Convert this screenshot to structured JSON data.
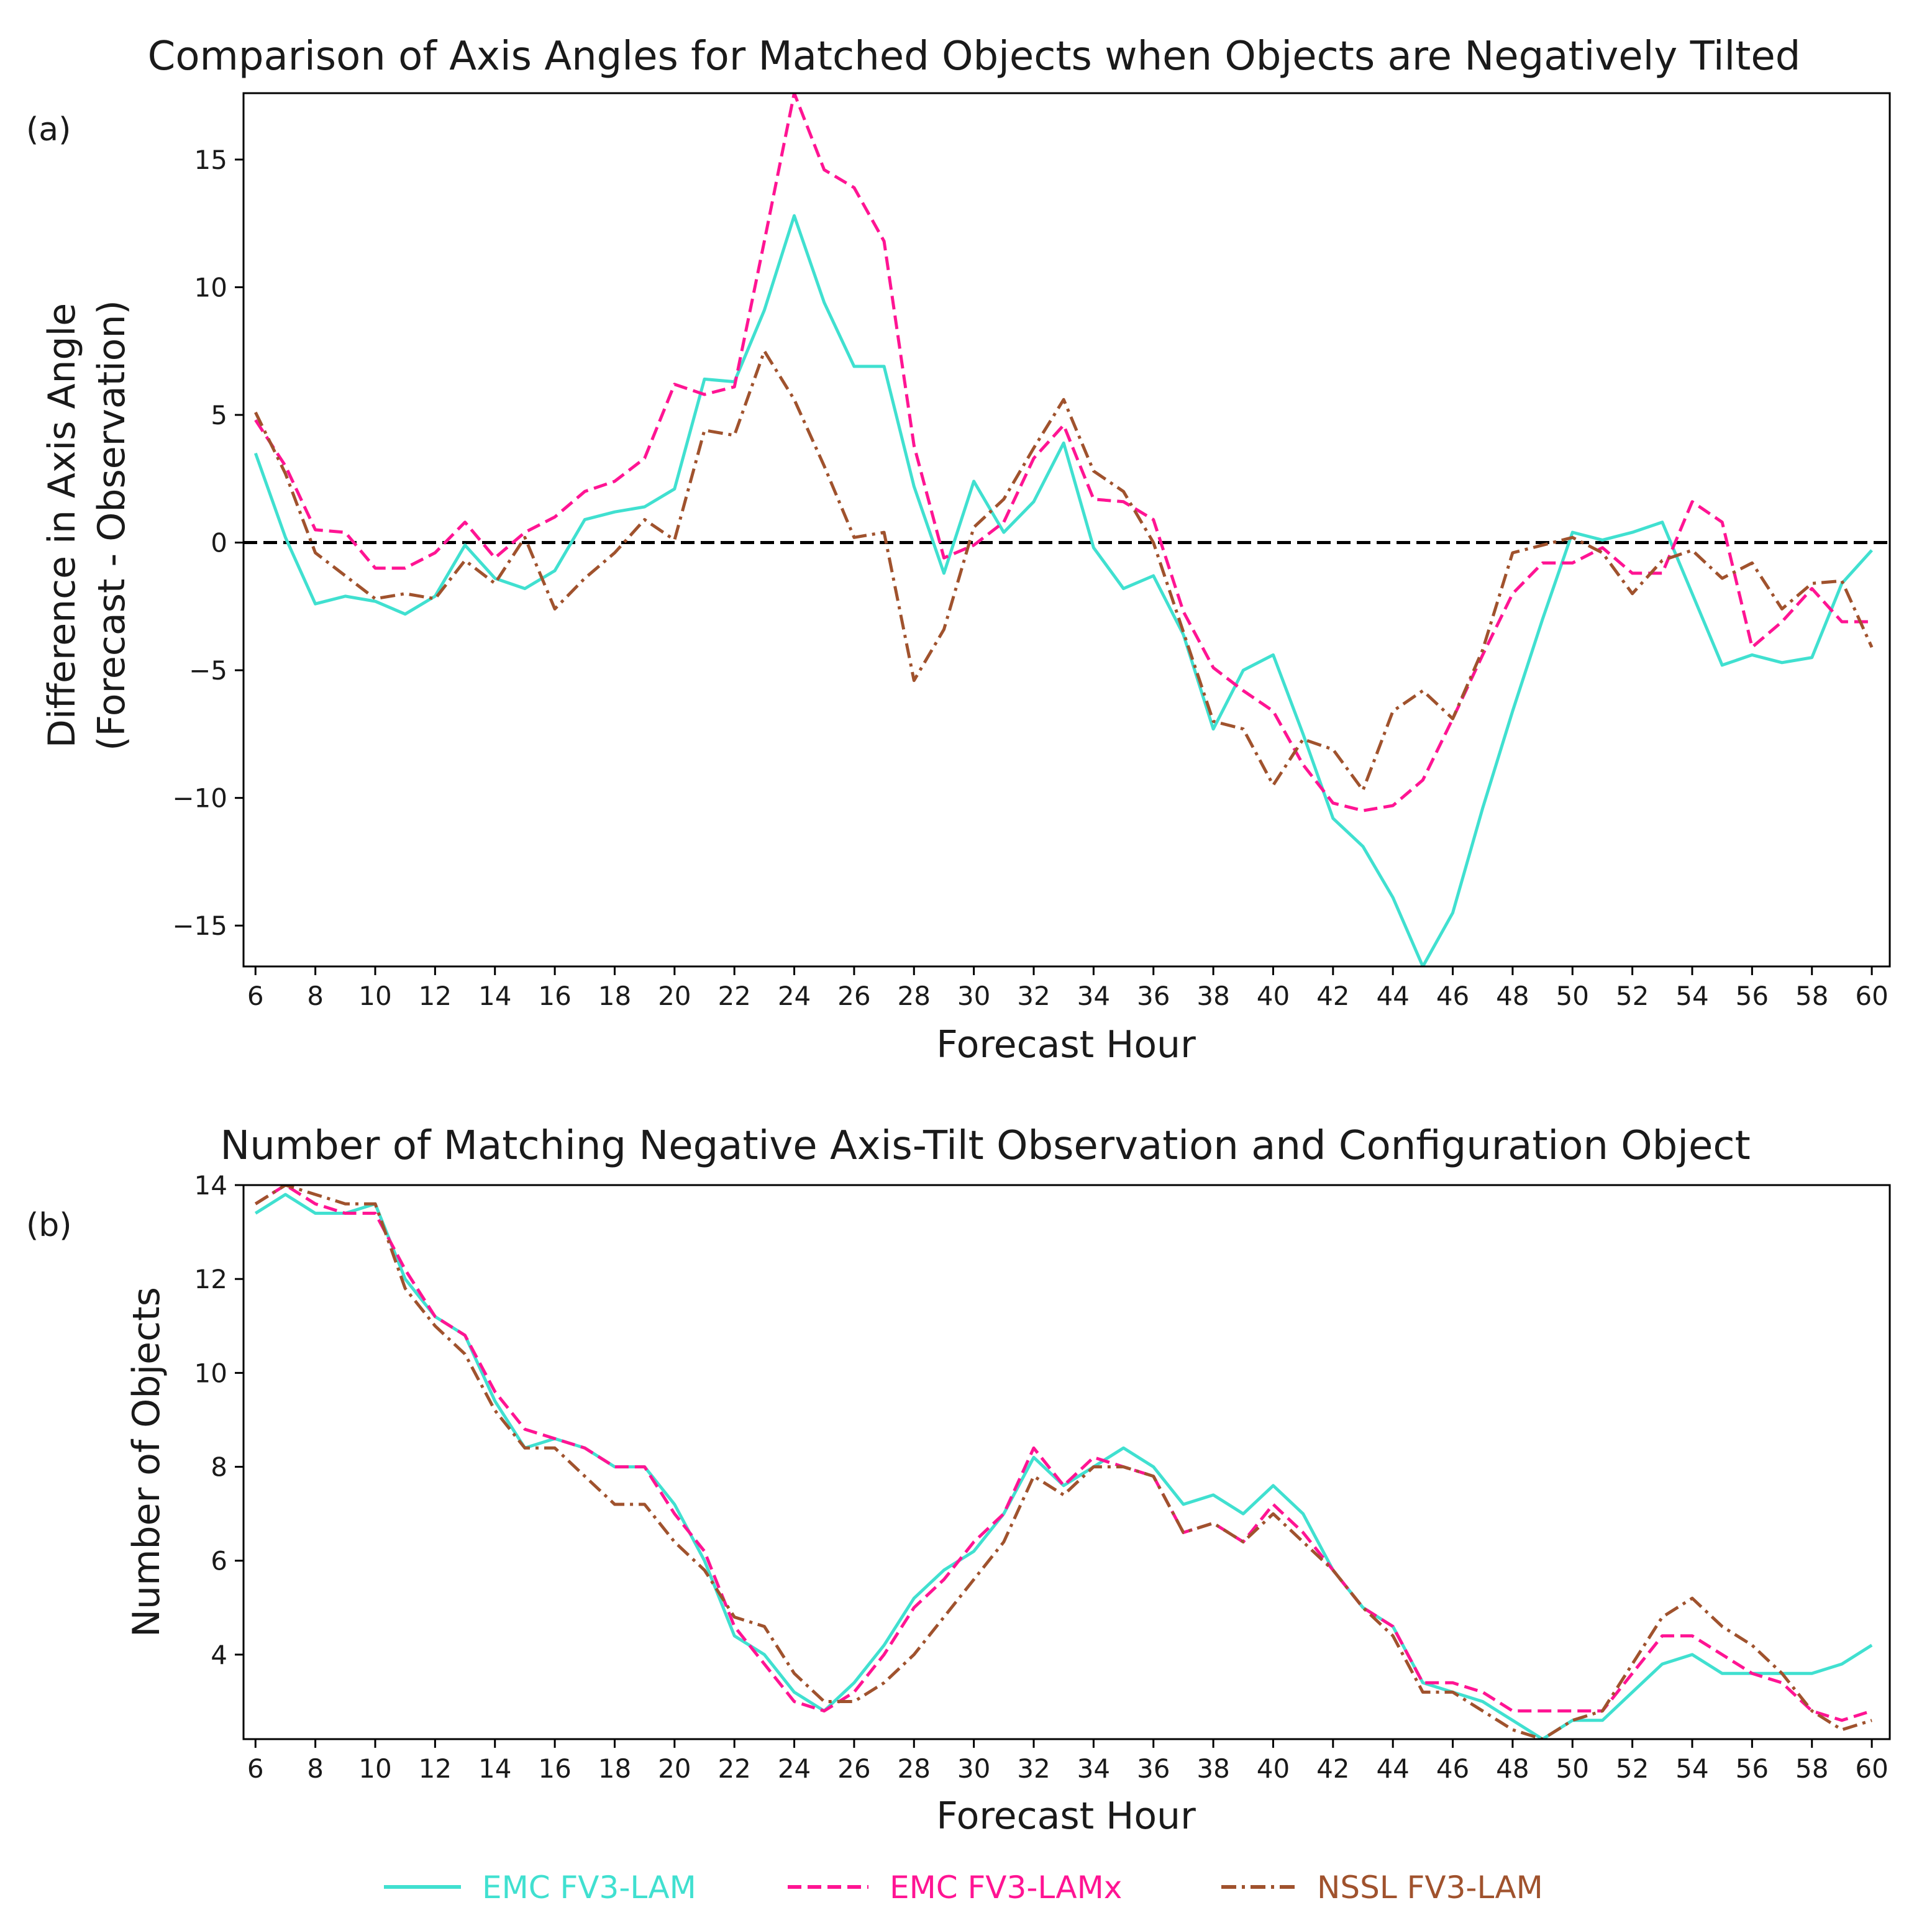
{
  "chart_data": [
    {
      "type": "line",
      "panel_label": "(a)",
      "title": "Comparison of Axis Angles for Matched Objects when Objects are Negatively Tilted",
      "xlabel": "Forecast Hour",
      "ylabel_line1": "Difference in Axis Angle",
      "ylabel_line2": "(Forecast - Observation)",
      "xlim": [
        5.6,
        60.6
      ],
      "ylim": [
        -16.6,
        17.6
      ],
      "xticks": [
        6,
        8,
        10,
        12,
        14,
        16,
        18,
        20,
        22,
        24,
        26,
        28,
        30,
        32,
        34,
        36,
        38,
        40,
        42,
        44,
        46,
        48,
        50,
        52,
        54,
        56,
        58,
        60
      ],
      "yticks": [
        -15,
        -10,
        -5,
        0,
        5,
        10,
        15
      ],
      "ytick_labels": [
        "−15",
        "−10",
        "−5",
        "0",
        "5",
        "10",
        "15"
      ],
      "reference_line": 0,
      "x": [
        6,
        7,
        8,
        9,
        10,
        11,
        12,
        13,
        14,
        15,
        16,
        17,
        18,
        19,
        20,
        21,
        22,
        23,
        24,
        25,
        26,
        27,
        28,
        29,
        30,
        31,
        32,
        33,
        34,
        35,
        36,
        37,
        38,
        39,
        40,
        41,
        42,
        43,
        44,
        45,
        46,
        47,
        48,
        49,
        50,
        51,
        52,
        53,
        54,
        55,
        56,
        57,
        58,
        59,
        60
      ],
      "series": [
        {
          "name": "EMC FV3-LAM",
          "color": "#40e0d0",
          "dash": "solid",
          "values": [
            3.5,
            0.2,
            -2.4,
            -2.1,
            -2.3,
            -2.8,
            -2.1,
            -0.1,
            -1.4,
            -1.8,
            -1.1,
            0.9,
            1.2,
            1.4,
            2.1,
            6.4,
            6.3,
            9.1,
            12.8,
            9.4,
            6.9,
            6.9,
            2.2,
            -1.2,
            2.4,
            0.4,
            1.6,
            3.9,
            -0.2,
            -1.8,
            -1.3,
            -3.6,
            -7.3,
            -5.0,
            -4.4,
            -7.5,
            -10.8,
            -11.9,
            -13.9,
            -16.6,
            -14.5,
            -10.4,
            -6.6,
            -3.0,
            0.4,
            0.1,
            0.4,
            0.8,
            -2.0,
            -4.8,
            -4.4,
            -4.7,
            -4.5,
            -1.6,
            -0.3
          ]
        },
        {
          "name": "EMC FV3-LAMx",
          "color": "#ff1493",
          "dash": "dashed",
          "values": [
            4.8,
            3.0,
            0.5,
            0.4,
            -1.0,
            -1.0,
            -0.4,
            0.8,
            -0.6,
            0.4,
            1.0,
            2.0,
            2.4,
            3.3,
            6.2,
            5.8,
            6.1,
            11.8,
            17.6,
            14.6,
            13.9,
            11.8,
            3.8,
            -0.6,
            -0.1,
            0.8,
            3.3,
            4.6,
            1.7,
            1.6,
            0.9,
            -2.7,
            -4.9,
            -5.8,
            -6.6,
            -8.7,
            -10.2,
            -10.5,
            -10.3,
            -9.3,
            -6.9,
            -4.4,
            -2.0,
            -0.8,
            -0.8,
            -0.2,
            -1.2,
            -1.2,
            1.6,
            0.8,
            -4.1,
            -3.1,
            -1.8,
            -3.1,
            -3.1
          ]
        },
        {
          "name": "NSSL FV3-LAM",
          "color": "#a0522d",
          "dash": "dashdot",
          "values": [
            5.1,
            2.7,
            -0.4,
            -1.3,
            -2.2,
            -2.0,
            -2.2,
            -0.7,
            -1.6,
            0.2,
            -2.6,
            -1.4,
            -0.4,
            0.9,
            0.1,
            4.4,
            4.2,
            7.5,
            5.6,
            3.0,
            0.2,
            0.4,
            -5.4,
            -3.4,
            0.6,
            1.7,
            3.7,
            5.6,
            2.8,
            2.0,
            0.0,
            -3.5,
            -7.0,
            -7.3,
            -9.5,
            -7.7,
            -8.1,
            -9.7,
            -6.6,
            -5.8,
            -6.9,
            -4.2,
            -0.4,
            -0.1,
            0.2,
            -0.4,
            -2.0,
            -0.7,
            -0.3,
            -1.4,
            -0.8,
            -2.6,
            -1.6,
            -1.5,
            -4.1
          ]
        }
      ]
    },
    {
      "type": "line",
      "panel_label": "(b)",
      "title": "Number of Matching Negative Axis-Tilt Observation and Configuration Object",
      "xlabel": "Forecast Hour",
      "ylabel": "Number of Objects",
      "xlim": [
        5.6,
        60.6
      ],
      "ylim": [
        2.2,
        14.0
      ],
      "xticks": [
        6,
        8,
        10,
        12,
        14,
        16,
        18,
        20,
        22,
        24,
        26,
        28,
        30,
        32,
        34,
        36,
        38,
        40,
        42,
        44,
        46,
        48,
        50,
        52,
        54,
        56,
        58,
        60
      ],
      "yticks": [
        4,
        6,
        8,
        10,
        12,
        14
      ],
      "x": [
        6,
        7,
        8,
        9,
        10,
        11,
        12,
        13,
        14,
        15,
        16,
        17,
        18,
        19,
        20,
        21,
        22,
        23,
        24,
        25,
        26,
        27,
        28,
        29,
        30,
        31,
        32,
        33,
        34,
        35,
        36,
        37,
        38,
        39,
        40,
        41,
        42,
        43,
        44,
        45,
        46,
        47,
        48,
        49,
        50,
        51,
        52,
        53,
        54,
        55,
        56,
        57,
        58,
        59,
        60
      ],
      "series": [
        {
          "name": "EMC FV3-LAM",
          "color": "#40e0d0",
          "dash": "solid",
          "values": [
            13.4,
            13.8,
            13.4,
            13.4,
            13.6,
            12.0,
            11.2,
            10.8,
            9.4,
            8.4,
            8.6,
            8.4,
            8.0,
            8.0,
            7.2,
            6.0,
            4.4,
            4.0,
            3.2,
            2.8,
            3.4,
            4.2,
            5.2,
            5.8,
            6.2,
            7.0,
            8.2,
            7.6,
            8.0,
            8.4,
            8.0,
            7.2,
            7.4,
            7.0,
            7.6,
            7.0,
            5.8,
            5.0,
            4.6,
            3.4,
            3.2,
            3.0,
            2.6,
            2.2,
            2.6,
            2.6,
            3.2,
            3.8,
            4.0,
            3.6,
            3.6,
            3.6,
            3.6,
            3.8,
            4.2
          ]
        },
        {
          "name": "EMC FV3-LAMx",
          "color": "#ff1493",
          "dash": "dashed",
          "values": [
            13.6,
            14.0,
            13.6,
            13.4,
            13.4,
            12.2,
            11.2,
            10.8,
            9.6,
            8.8,
            8.6,
            8.4,
            8.0,
            8.0,
            7.0,
            6.2,
            4.6,
            3.8,
            3.0,
            2.8,
            3.2,
            4.0,
            5.0,
            5.6,
            6.4,
            7.0,
            8.4,
            7.6,
            8.2,
            8.0,
            7.8,
            6.6,
            6.8,
            6.4,
            7.2,
            6.6,
            5.8,
            5.0,
            4.6,
            3.4,
            3.4,
            3.2,
            2.8,
            2.8,
            2.8,
            2.8,
            3.6,
            4.4,
            4.4,
            4.0,
            3.6,
            3.4,
            2.8,
            2.6,
            2.8
          ]
        },
        {
          "name": "NSSL FV3-LAM",
          "color": "#a0522d",
          "dash": "dashdot",
          "values": [
            13.6,
            14.0,
            13.8,
            13.6,
            13.6,
            11.8,
            11.0,
            10.4,
            9.2,
            8.4,
            8.4,
            7.8,
            7.2,
            7.2,
            6.4,
            5.8,
            4.8,
            4.6,
            3.6,
            3.0,
            3.0,
            3.4,
            4.0,
            4.8,
            5.6,
            6.4,
            7.8,
            7.4,
            8.0,
            8.0,
            7.8,
            6.6,
            6.8,
            6.4,
            7.0,
            6.4,
            5.8,
            5.0,
            4.4,
            3.2,
            3.2,
            2.8,
            2.4,
            2.2,
            2.6,
            2.8,
            3.8,
            4.8,
            5.2,
            4.6,
            4.2,
            3.6,
            2.8,
            2.4,
            2.6
          ]
        }
      ]
    }
  ],
  "legend": {
    "placement": "bottom-center",
    "items": [
      {
        "label": "EMC FV3-LAM",
        "color": "#40e0d0",
        "dash": "solid"
      },
      {
        "label": "EMC FV3-LAMx",
        "color": "#ff1493",
        "dash": "dashed"
      },
      {
        "label": "NSSL FV3-LAM",
        "color": "#a0522d",
        "dash": "dashdot"
      }
    ]
  }
}
